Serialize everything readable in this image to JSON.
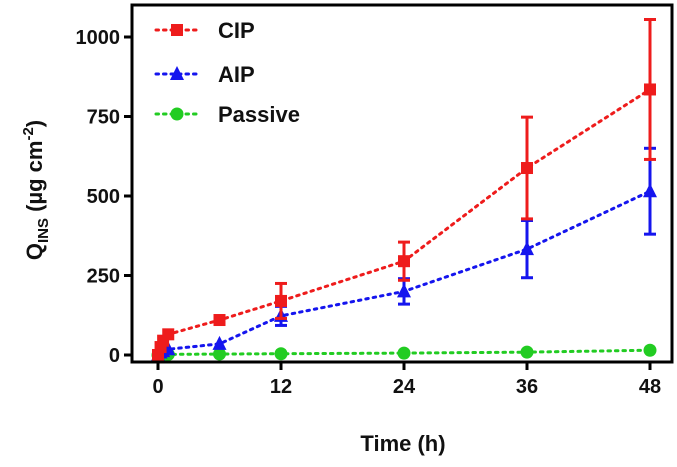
{
  "chart_data": {
    "type": "line",
    "title": "",
    "xlabel": "Time (h)",
    "ylabel": {
      "main": "Q",
      "sub": "INS",
      "units_open": " (µg cm",
      "sup": "-2",
      "units_close": ")"
    },
    "xlim": [
      0,
      48
    ],
    "ylim": [
      0,
      1080
    ],
    "xticks": [
      "0",
      "12",
      "24",
      "36",
      "48"
    ],
    "yticks": [
      "0",
      "250",
      "500",
      "750",
      "1000"
    ],
    "legend_position": "top-left",
    "series": [
      {
        "name": "CIP",
        "color": "#ee1c1c",
        "marker": "square",
        "x": [
          0,
          0.25,
          0.5,
          1,
          6,
          12,
          24,
          36,
          48
        ],
        "y": [
          0,
          25,
          45,
          65,
          110,
          170,
          295,
          588,
          835
        ],
        "err": [
          0,
          0,
          0,
          0,
          0,
          55,
          60,
          160,
          220
        ]
      },
      {
        "name": "AIP",
        "color": "#1515ee",
        "marker": "triangle",
        "x": [
          0,
          0.25,
          0.5,
          1,
          6,
          12,
          24,
          36,
          48
        ],
        "y": [
          0,
          8,
          12,
          18,
          35,
          123,
          200,
          333,
          515
        ],
        "err": [
          0,
          0,
          0,
          0,
          0,
          30,
          40,
          90,
          135
        ]
      },
      {
        "name": "Passive",
        "color": "#22cc22",
        "marker": "circle",
        "x": [
          0,
          0.25,
          0.5,
          1,
          6,
          12,
          24,
          36,
          48
        ],
        "y": [
          0,
          1,
          2,
          2,
          3,
          4,
          6,
          9,
          15
        ],
        "err": [
          0,
          0,
          0,
          0,
          0,
          0,
          0,
          0,
          0
        ]
      }
    ]
  }
}
